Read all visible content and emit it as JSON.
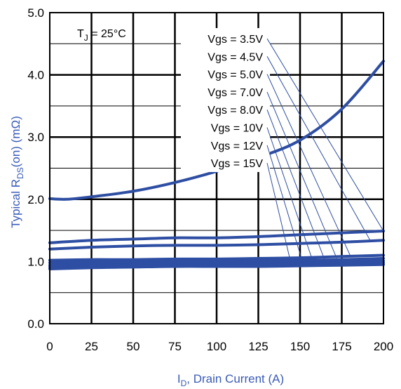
{
  "chart_data": {
    "type": "line",
    "title": "",
    "xlabel": {
      "prefix": "I",
      "sub": "D",
      "suffix": ", Drain Current (A)"
    },
    "ylabel": {
      "prefix": "Typical R",
      "sub": "DS",
      "suffix": "(on) (mΩ)"
    },
    "xlim": [
      0,
      200
    ],
    "ylim": [
      0,
      5
    ],
    "xticks": [
      "0",
      "25",
      "50",
      "75",
      "100",
      "125",
      "150",
      "175",
      "200"
    ],
    "yticks": [
      "0.0",
      "1.0",
      "2.0",
      "3.0",
      "4.0",
      "5.0"
    ],
    "grid": true,
    "condition": {
      "prefix": "T",
      "sub": "J",
      "suffix": " = 25°C"
    },
    "accent_color": "#2e4ea3",
    "axis_title_color": "#3a5bb8",
    "legend_position": "top-center",
    "series": [
      {
        "name": "Vgs = 3.5V",
        "x": [
          0,
          10,
          25,
          50,
          75,
          100,
          125,
          150,
          175,
          200
        ],
        "y": [
          2.01,
          2.0,
          2.04,
          2.13,
          2.27,
          2.45,
          2.67,
          2.95,
          3.45,
          4.22
        ]
      },
      {
        "name": "Vgs = 4.5V",
        "x": [
          0,
          25,
          50,
          75,
          100,
          125,
          150,
          175,
          200
        ],
        "y": [
          1.3,
          1.34,
          1.36,
          1.38,
          1.38,
          1.4,
          1.43,
          1.46,
          1.49
        ]
      },
      {
        "name": "Vgs = 5.0V",
        "x": [
          0,
          25,
          50,
          75,
          100,
          125,
          150,
          175,
          200
        ],
        "y": [
          1.2,
          1.23,
          1.25,
          1.26,
          1.26,
          1.27,
          1.29,
          1.31,
          1.34
        ]
      },
      {
        "name": "Vgs = 7.0V",
        "x": [
          0,
          25,
          50,
          75,
          100,
          125,
          150,
          175,
          200
        ],
        "y": [
          1.02,
          1.03,
          1.03,
          1.04,
          1.04,
          1.05,
          1.06,
          1.08,
          1.1
        ]
      },
      {
        "name": "Vgs = 8.0V",
        "x": [
          0,
          25,
          50,
          75,
          100,
          125,
          150,
          175,
          200
        ],
        "y": [
          0.98,
          0.99,
          0.99,
          1.0,
          1.0,
          1.01,
          1.02,
          1.03,
          1.05
        ]
      },
      {
        "name": "Vgs = 10V",
        "x": [
          0,
          25,
          50,
          75,
          100,
          125,
          150,
          175,
          200
        ],
        "y": [
          0.94,
          0.96,
          0.97,
          0.97,
          0.97,
          0.98,
          0.99,
          1.0,
          1.01
        ]
      },
      {
        "name": "Vgs = 12V",
        "x": [
          0,
          25,
          50,
          75,
          100,
          125,
          150,
          175,
          200
        ],
        "y": [
          0.91,
          0.93,
          0.94,
          0.94,
          0.94,
          0.95,
          0.96,
          0.97,
          0.98
        ]
      },
      {
        "name": "Vgs = 15V",
        "x": [
          0,
          25,
          50,
          75,
          100,
          125,
          150,
          175,
          200
        ],
        "y": [
          0.88,
          0.9,
          0.91,
          0.92,
          0.92,
          0.92,
          0.93,
          0.94,
          0.95
        ]
      }
    ],
    "leader_targets": [
      {
        "x": 200,
        "y": 1.49
      },
      {
        "x": 192,
        "y": 1.34
      },
      {
        "x": 180,
        "y": 1.1
      },
      {
        "x": 172,
        "y": 1.05
      },
      {
        "x": 165,
        "y": 1.01
      },
      {
        "x": 158,
        "y": 0.98
      },
      {
        "x": 152,
        "y": 0.95
      },
      {
        "x": 145,
        "y": 0.92
      }
    ]
  }
}
